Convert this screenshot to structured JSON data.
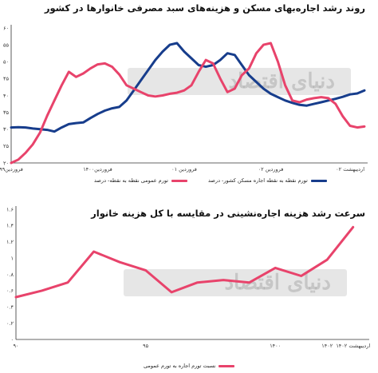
{
  "chart_data": [
    {
      "type": "line",
      "title": "روند رشد اجاره‌بهای مسکن و هزینه‌های سبد مصرفی خانوارها در کشور",
      "ylim": [
        20,
        60
      ],
      "yticks": [
        "۶۰",
        "۵۵",
        "۵۰",
        "۴۵",
        "۴۰",
        "۳۵",
        "۳۰",
        "۲۵",
        "۲۰"
      ],
      "ytick_values": [
        60,
        55,
        50,
        45,
        40,
        35,
        30,
        25,
        20
      ],
      "xticks": [
        "فروردین۹۹",
        "فروردین۱۴۰۰",
        "فروردین ۰۱",
        "فروردین ۰۲",
        "اردیبهشت ۰۲"
      ],
      "xtick_positions": [
        0,
        12,
        24,
        36,
        49
      ],
      "grid": false,
      "legend_position": "bottom",
      "series": [
        {
          "name": "تورم نقطه به نقطه اجاره مسکن کشور- درصد",
          "color": "#173d8c",
          "x": [
            0,
            1,
            2,
            3,
            4,
            5,
            6,
            7,
            8,
            9,
            10,
            11,
            12,
            13,
            14,
            15,
            16,
            17,
            18,
            19,
            20,
            21,
            22,
            23,
            24,
            25,
            26,
            27,
            28,
            29,
            30,
            31,
            32,
            33,
            34,
            35,
            36,
            37,
            38,
            39,
            40,
            41,
            42,
            43,
            44,
            45,
            46,
            47,
            48,
            49
          ],
          "values": [
            30.5,
            30.6,
            30.5,
            30.2,
            30,
            29.8,
            29.3,
            30.5,
            31.5,
            31.8,
            32,
            33.3,
            34.5,
            35.5,
            36.2,
            36.6,
            38.5,
            41.5,
            44.5,
            47.5,
            50.5,
            53,
            55,
            55.5,
            53,
            51,
            49,
            48.5,
            49,
            50.5,
            52.5,
            52,
            49,
            46,
            44,
            42,
            40.5,
            39.5,
            38.5,
            37.8,
            37.2,
            37,
            37.5,
            38,
            38.5,
            39,
            39.6,
            40.3,
            40.6,
            41.5
          ]
        },
        {
          "name": "تورم عمومی نقطه به نقطه- درصد",
          "color": "#e8436b",
          "x": [
            0,
            1,
            2,
            3,
            4,
            5,
            6,
            7,
            8,
            9,
            10,
            11,
            12,
            13,
            14,
            15,
            16,
            17,
            18,
            19,
            20,
            21,
            22,
            23,
            24,
            25,
            26,
            27,
            28,
            29,
            30,
            31,
            32,
            33,
            34,
            35,
            36,
            37,
            38,
            39,
            40,
            41,
            42,
            43,
            44,
            45,
            46,
            47,
            48,
            49
          ],
          "values": [
            20,
            21,
            23,
            25.5,
            29,
            34,
            38.5,
            43,
            47,
            45.5,
            46.5,
            48,
            49.2,
            49.5,
            48.5,
            46.2,
            43,
            42,
            41,
            40,
            39.7,
            40,
            40.5,
            40.8,
            41.5,
            43,
            47,
            50.5,
            49.5,
            45,
            41,
            42,
            46,
            48,
            52.5,
            55,
            55.5,
            50,
            43,
            38.5,
            38,
            38.8,
            39.2,
            39.5,
            39.2,
            37.5,
            33.8,
            31,
            30.5,
            30.8
          ]
        }
      ]
    },
    {
      "type": "line",
      "title": "سرعت رشد هزینه اجاره‌نشینی در مقایسه با کل هزینه خانوار",
      "ylim": [
        0,
        1.6
      ],
      "yticks": [
        "۱.۶",
        "۱.۴",
        "۱.۲",
        "۱",
        "۰.۸",
        "۰.۶",
        "۰.۴",
        "۰.۲",
        "۰"
      ],
      "ytick_values": [
        1.6,
        1.4,
        1.2,
        1.0,
        0.8,
        0.6,
        0.4,
        0.2,
        0
      ],
      "xticks": [
        "۹۰",
        "۹۵",
        "۱۴۰۰",
        "۱۴۰۲",
        "اردیبهشت ۱۴۰۲"
      ],
      "xtick_positions": [
        0,
        5,
        10,
        12,
        13
      ],
      "grid": false,
      "legend_position": "bottom",
      "series": [
        {
          "name": "نسبت تورم اجاره به تورم عمومی",
          "color": "#e8436b",
          "x": [
            0,
            1,
            2,
            3,
            4,
            5,
            6,
            7,
            8,
            9,
            10,
            11,
            12,
            13
          ],
          "values": [
            0.52,
            0.6,
            0.7,
            1.08,
            0.95,
            0.85,
            0.58,
            0.7,
            0.73,
            0.7,
            0.88,
            0.78,
            0.98,
            1.38
          ]
        }
      ]
    }
  ],
  "watermark_text": "دنیای اقتصاد"
}
